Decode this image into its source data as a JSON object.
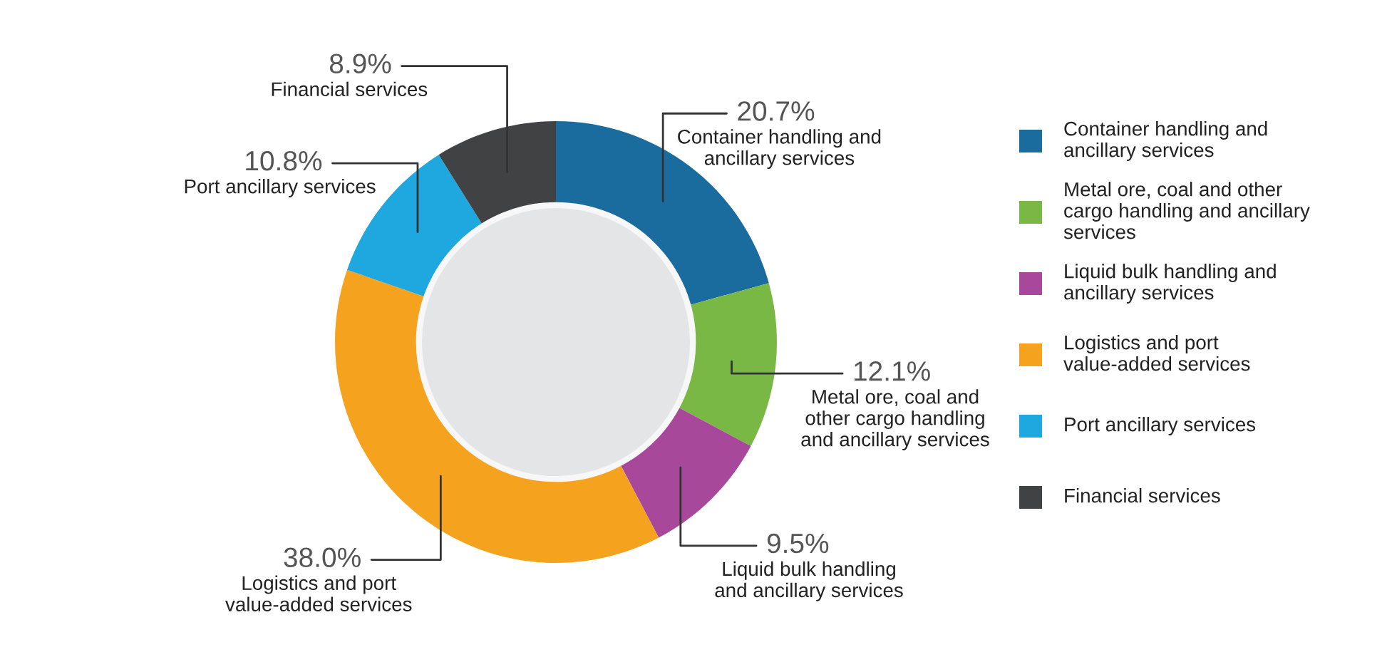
{
  "chart_data": {
    "type": "donut",
    "categories": [
      "Container handling and ancillary services",
      "Metal ore, coal and other cargo handling and ancillary services",
      "Liquid bulk handling and ancillary services",
      "Logistics and port value-added services",
      "Port ancillary services",
      "Financial services"
    ],
    "values": [
      20.7,
      12.1,
      9.5,
      38.0,
      10.8,
      8.9
    ],
    "colors": [
      "#1a6c9e",
      "#7ab845",
      "#a7489b",
      "#f5a31e",
      "#1fa7e0",
      "#414244"
    ],
    "value_labels": [
      "20.7%",
      "12.1%",
      "9.5%",
      "38.0%",
      "10.8%",
      "8.9%"
    ],
    "legend": "right"
  }
}
